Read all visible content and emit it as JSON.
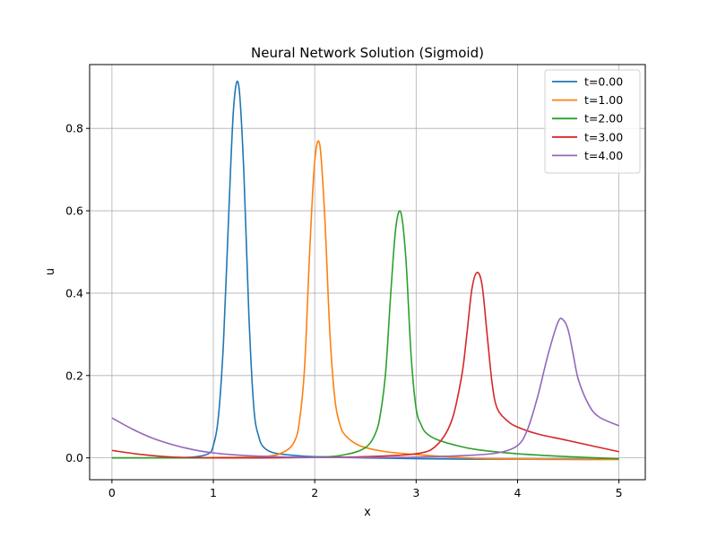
{
  "chart_data": {
    "type": "line",
    "title": "Neural Network Solution (Sigmoid)",
    "xlabel": "x",
    "ylabel": "u",
    "xlim": [
      -0.22,
      5.26
    ],
    "ylim": [
      -0.053,
      0.955
    ],
    "xticks": [
      0,
      1,
      2,
      3,
      4,
      5
    ],
    "xtick_labels": [
      "0",
      "1",
      "2",
      "3",
      "4",
      "5"
    ],
    "yticks": [
      0.0,
      0.2,
      0.4,
      0.6,
      0.8
    ],
    "ytick_labels": [
      "0.0",
      "0.2",
      "0.4",
      "0.6",
      "0.8"
    ],
    "grid": true,
    "legend_position": "top-right",
    "series": [
      {
        "name": "t=0.00",
        "color": "#1f77b4",
        "x": [
          0,
          0.5,
          0.8,
          0.95,
          1.0,
          1.05,
          1.1,
          1.15,
          1.2,
          1.25,
          1.3,
          1.35,
          1.4,
          1.45,
          1.5,
          1.6,
          1.8,
          2.0,
          2.5,
          3.0,
          3.5,
          4.0,
          4.5,
          5.0
        ],
        "y": [
          0.0,
          0.0,
          0.002,
          0.01,
          0.03,
          0.1,
          0.28,
          0.58,
          0.85,
          0.905,
          0.7,
          0.35,
          0.12,
          0.05,
          0.025,
          0.012,
          0.006,
          0.003,
          0.0,
          -0.002,
          -0.003,
          -0.003,
          -0.003,
          -0.003
        ]
      },
      {
        "name": "t=1.00",
        "color": "#ff7f0e",
        "x": [
          0,
          0.5,
          1.0,
          1.5,
          1.7,
          1.8,
          1.85,
          1.9,
          1.95,
          2.0,
          2.05,
          2.1,
          2.15,
          2.2,
          2.25,
          2.3,
          2.4,
          2.5,
          2.7,
          3.0,
          3.5,
          4.0,
          4.5,
          5.0
        ],
        "y": [
          0.0,
          0.0,
          0.001,
          0.003,
          0.015,
          0.04,
          0.09,
          0.22,
          0.5,
          0.72,
          0.76,
          0.58,
          0.3,
          0.14,
          0.08,
          0.055,
          0.035,
          0.025,
          0.015,
          0.008,
          0.0,
          -0.003,
          -0.004,
          -0.004
        ]
      },
      {
        "name": "t=2.00",
        "color": "#2ca02c",
        "x": [
          0,
          1.0,
          2.0,
          2.3,
          2.5,
          2.6,
          2.65,
          2.7,
          2.75,
          2.8,
          2.85,
          2.9,
          2.95,
          3.0,
          3.05,
          3.1,
          3.2,
          3.4,
          3.6,
          4.0,
          4.5,
          5.0
        ],
        "y": [
          0.0,
          0.0,
          0.002,
          0.008,
          0.025,
          0.06,
          0.11,
          0.21,
          0.4,
          0.56,
          0.595,
          0.48,
          0.25,
          0.12,
          0.08,
          0.06,
          0.045,
          0.03,
          0.02,
          0.01,
          0.003,
          -0.002
        ]
      },
      {
        "name": "t=3.00",
        "color": "#d62728",
        "x": [
          0,
          0.3,
          0.6,
          1.0,
          1.5,
          2.0,
          2.5,
          3.0,
          3.2,
          3.35,
          3.45,
          3.5,
          3.55,
          3.6,
          3.65,
          3.7,
          3.75,
          3.8,
          3.9,
          4.0,
          4.2,
          4.5,
          5.0
        ],
        "y": [
          0.018,
          0.008,
          0.002,
          0.0,
          0.0,
          0.001,
          0.003,
          0.01,
          0.03,
          0.09,
          0.2,
          0.3,
          0.41,
          0.45,
          0.42,
          0.3,
          0.18,
          0.12,
          0.09,
          0.075,
          0.058,
          0.042,
          0.015
        ]
      },
      {
        "name": "t=4.00",
        "color": "#9467bd",
        "x": [
          0,
          0.2,
          0.4,
          0.6,
          0.8,
          1.0,
          1.3,
          1.6,
          2.0,
          2.5,
          3.0,
          3.5,
          3.8,
          4.0,
          4.1,
          4.2,
          4.3,
          4.4,
          4.45,
          4.5,
          4.55,
          4.6,
          4.7,
          4.8,
          5.0
        ],
        "y": [
          0.097,
          0.07,
          0.048,
          0.032,
          0.02,
          0.012,
          0.006,
          0.003,
          0.001,
          0.001,
          0.002,
          0.006,
          0.012,
          0.03,
          0.07,
          0.15,
          0.25,
          0.33,
          0.335,
          0.31,
          0.25,
          0.19,
          0.13,
          0.1,
          0.078
        ]
      }
    ]
  }
}
